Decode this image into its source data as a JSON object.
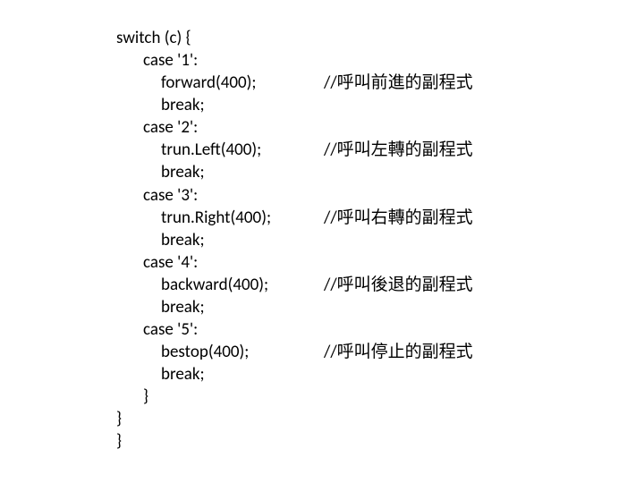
{
  "code": {
    "font_size": 19,
    "text_color": "#000000",
    "background_color": "#ffffff",
    "lines": [
      {
        "indent": 0,
        "code": "switch (c) {",
        "comment": ""
      },
      {
        "indent": 1,
        "code": "case '1':",
        "comment": ""
      },
      {
        "indent": 2,
        "code": "forward(400);",
        "comment": "//呼叫前進的副程式"
      },
      {
        "indent": 2,
        "code": "break;",
        "comment": ""
      },
      {
        "indent": 1,
        "code": "case '2':",
        "comment": ""
      },
      {
        "indent": 2,
        "code": "trun.Left(400);",
        "comment": "//呼叫左轉的副程式"
      },
      {
        "indent": 2,
        "code": "break;",
        "comment": ""
      },
      {
        "indent": 1,
        "code": "case '3':",
        "comment": ""
      },
      {
        "indent": 2,
        "code": "trun.Right(400);",
        "comment": "//呼叫右轉的副程式"
      },
      {
        "indent": 2,
        "code": "break;",
        "comment": ""
      },
      {
        "indent": 1,
        "code": "case '4':",
        "comment": ""
      },
      {
        "indent": 2,
        "code": "backward(400);",
        "comment": "//呼叫後退的副程式"
      },
      {
        "indent": 2,
        "code": "break;",
        "comment": ""
      },
      {
        "indent": 1,
        "code": "case '5':",
        "comment": ""
      },
      {
        "indent": 2,
        "code": "bestop(400);",
        "comment": "//呼叫停止的副程式"
      },
      {
        "indent": 2,
        "code": "break;",
        "comment": ""
      },
      {
        "indent": 1,
        "code": "}",
        "comment": ""
      },
      {
        "indent": 0,
        "code": "}",
        "comment": ""
      },
      {
        "indent": 0,
        "code": "}",
        "comment": ""
      }
    ]
  }
}
